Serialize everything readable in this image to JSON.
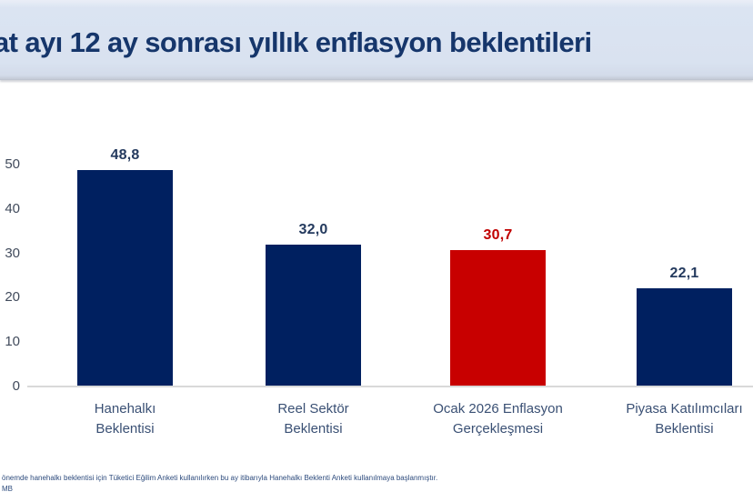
{
  "header": {
    "title": "at ayı 12 ay sonrası yıllık enflasyon beklentileri"
  },
  "colors": {
    "navy": "#002060",
    "red": "#c80000",
    "header_bg": "#d9e2f0",
    "title_text": "#16366b",
    "axis_line": "#d9d9d9",
    "tick_text": "#414b5c",
    "category_text": "#3a5074",
    "value_text": "#243a5e",
    "value_text_red": "#c00000"
  },
  "chart_data": {
    "type": "bar",
    "title": "at ayı 12 ay sonrası yıllık enflasyon beklentileri",
    "categories": [
      "Hanehalkı Beklentisi",
      "Reel Sektör Beklentisi",
      "Ocak 2026 Enflasyon Gerçekleşmesi",
      "Piyasa Katılımcıları Beklentisi"
    ],
    "label_lines": [
      [
        "Hanehalkı",
        "Beklentisi"
      ],
      [
        "Reel Sektör",
        "Beklentisi"
      ],
      [
        "Ocak 2026 Enflasyon",
        "Gerçekleşmesi"
      ],
      [
        "Piyasa Katılımcıları",
        "Beklentisi"
      ]
    ],
    "values": [
      48.8,
      32.0,
      30.7,
      22.1
    ],
    "value_labels": [
      "48,8",
      "32,0",
      "30,7",
      "22,1"
    ],
    "bar_colors": [
      "#002060",
      "#002060",
      "#c80000",
      "#002060"
    ],
    "value_label_colors": [
      "#243a5e",
      "#243a5e",
      "#c00000",
      "#243a5e"
    ],
    "xlabel": "",
    "ylabel": "",
    "ylim": [
      0,
      50
    ],
    "yticks": [
      "50",
      "40",
      "30",
      "20",
      "10",
      "0"
    ],
    "grid": "off",
    "legend": "none"
  },
  "footer": {
    "line1": "önemde  hanehalkı beklentisi  için Tüketici  Eğilim Anketi  kullanılırken bu ay itibarıyla Hanehalkı Beklenti Anketi  kullanılmaya başlanmıştır.",
    "line2": "MB"
  }
}
